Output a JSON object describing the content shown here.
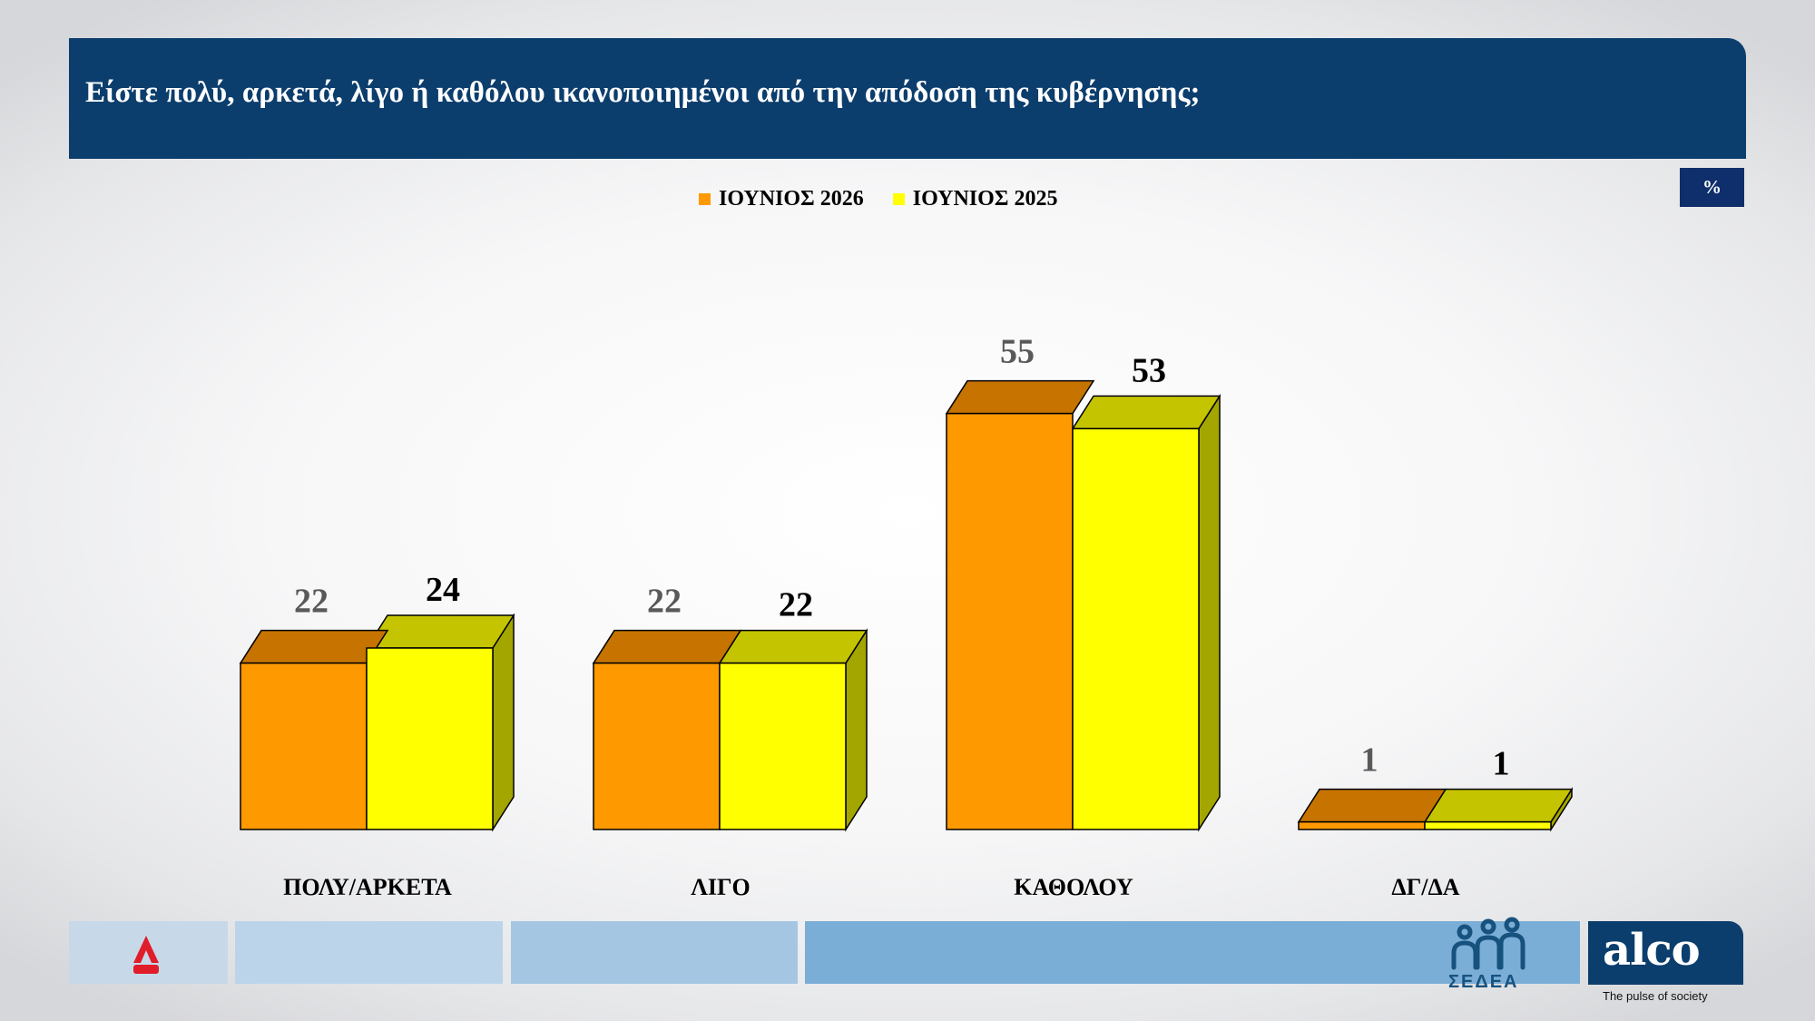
{
  "header": {
    "title": "Είστε πολύ, αρκετά, λίγο ή καθόλου ικανοποιημένοι από την  απόδοση της κυβέρνησης;"
  },
  "unit_label": "%",
  "logos": {
    "alpha": {
      "name": "AlphaNews",
      "icon": "alpha-news-logo-icon",
      "color": "#e11d2a"
    },
    "sedea": {
      "text": "ΣΕΔΕΑ",
      "icon": "sedea-people-icon",
      "color": "#17527f"
    },
    "alco": {
      "text": "alco",
      "tagline": "The pulse of society"
    }
  },
  "chart_data": {
    "type": "bar",
    "categories": [
      "ΠΟΛΥ/ΑΡΚΕΤΑ",
      "ΛΙΓΟ",
      "ΚΑΘΟΛΟΥ",
      "ΔΓ/ΔΑ"
    ],
    "series": [
      {
        "name": "ΙΟΥΝΙΟΣ 2026",
        "values": [
          22,
          22,
          55,
          1
        ],
        "color": "#ff9900"
      },
      {
        "name": "ΙΟΥΝΙΟΣ 2025",
        "values": [
          24,
          22,
          53,
          1
        ],
        "color": "#ffff00"
      }
    ],
    "title": "",
    "xlabel": "",
    "ylabel": "",
    "unit": "%",
    "ylim": [
      0,
      60
    ],
    "grid": false,
    "legend": "top-center",
    "three_d": true
  }
}
